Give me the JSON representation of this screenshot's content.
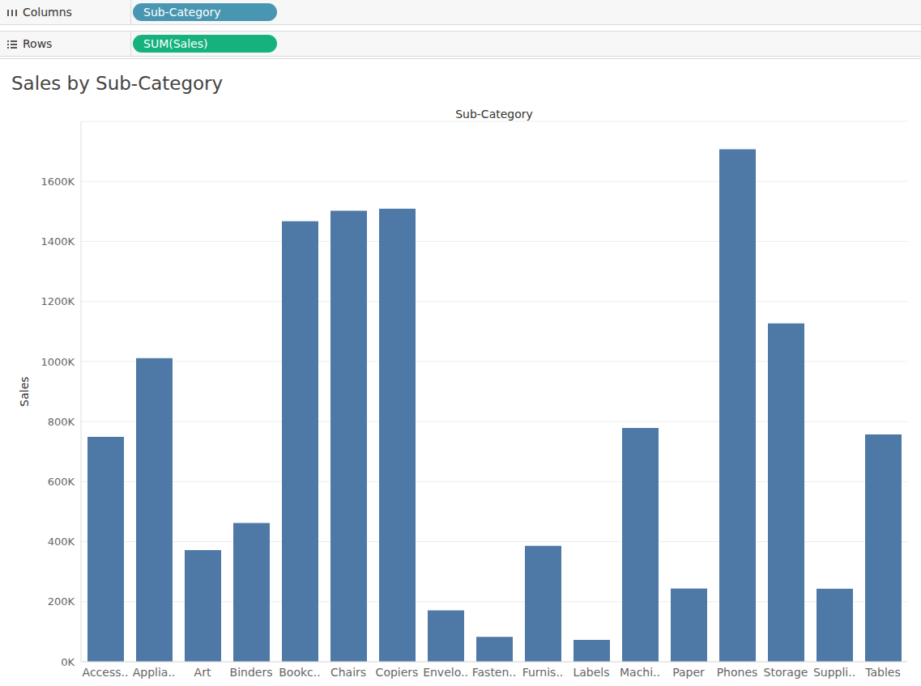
{
  "chart_data": {
    "type": "bar",
    "title": "Sales by Sub-Category",
    "x_label": "Sub-Category",
    "y_label": "Sales",
    "annotations": [
      {
        "label": "Columns",
        "text": "Sub-Category"
      },
      {
        "label": "Rows",
        "text": "SUM(Sales)"
      }
    ],
    "categories": [
      "Access..",
      "Applia..",
      "Art",
      "Binders",
      "Bookc..",
      "Chairs",
      "Copiers",
      "Envelo..",
      "Fasten..",
      "Furnis..",
      "Labels",
      "Machi..",
      "Paper",
      "Phones",
      "Storage",
      "Suppli..",
      "Tables"
    ],
    "values": [
      749000,
      1011000,
      372000,
      462000,
      1467000,
      1502000,
      1509000,
      171000,
      83000,
      386000,
      73000,
      779000,
      244000,
      1707000,
      1127000,
      243000,
      757000
    ],
    "color": "#4e79a7",
    "ylim": [
      0,
      1800000
    ],
    "yticks": [
      {
        "value": 0,
        "label": "0K"
      },
      {
        "value": 200000,
        "label": "200K"
      },
      {
        "value": 400000,
        "label": "400K"
      },
      {
        "value": 600000,
        "label": "600K"
      },
      {
        "value": 800000,
        "label": "800K"
      },
      {
        "value": 1000000,
        "label": "1000K"
      },
      {
        "value": 1200000,
        "label": "1200K"
      },
      {
        "value": 1400000,
        "label": "1400K"
      },
      {
        "value": 1600000,
        "label": "1600K"
      }
    ],
    "grid": true
  }
}
